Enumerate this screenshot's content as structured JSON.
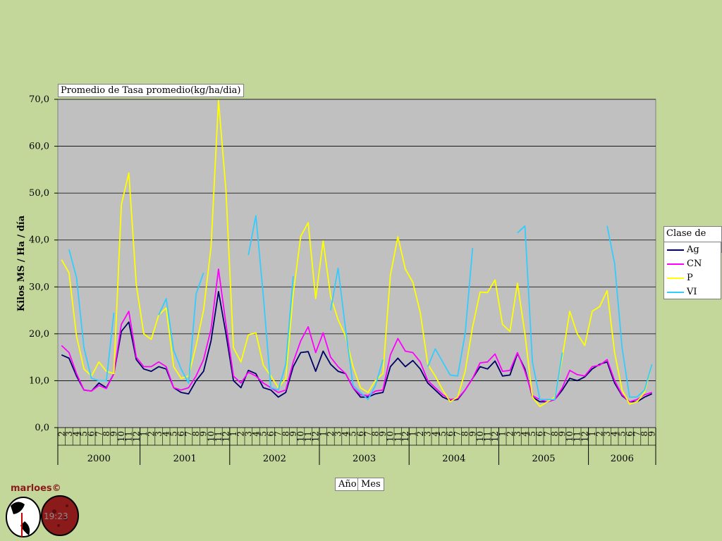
{
  "chart_data": {
    "type": "line",
    "title": "Promedio de Tasa promedio(kg/ha/dia)",
    "ylabel": "Kilos MS / Ha / día",
    "ylim": [
      0,
      70
    ],
    "yticks": [
      "0,0",
      "10,0",
      "20,0",
      "30,0",
      "40,0",
      "50,0",
      "60,0",
      "70,0"
    ],
    "grid": true,
    "legend_title": "Clase de uso",
    "legend_position": "right",
    "x_field_buttons": [
      "Año",
      "Mes"
    ],
    "years": [
      {
        "label": "2000",
        "months": [
          "2",
          "3",
          "4",
          "5",
          "6",
          "7",
          "8",
          "9",
          "10",
          "11",
          "12"
        ]
      },
      {
        "label": "2001",
        "months": [
          "1",
          "2",
          "3",
          "4",
          "5",
          "6",
          "7",
          "8",
          "9",
          "10",
          "11",
          "12"
        ]
      },
      {
        "label": "2002",
        "months": [
          "1",
          "2",
          "3",
          "4",
          "5",
          "6",
          "7",
          "8",
          "9",
          "10",
          "11",
          "12"
        ]
      },
      {
        "label": "2003",
        "months": [
          "1",
          "2",
          "3",
          "4",
          "5",
          "6",
          "7",
          "8",
          "9",
          "10",
          "11",
          "12"
        ]
      },
      {
        "label": "2004",
        "months": [
          "1",
          "2",
          "3",
          "4",
          "5",
          "6",
          "7",
          "8",
          "9",
          "10",
          "11",
          "12"
        ]
      },
      {
        "label": "2005",
        "months": [
          "1",
          "2",
          "3",
          "4",
          "5",
          "6",
          "7",
          "8",
          "9",
          "10",
          "11",
          "12"
        ]
      },
      {
        "label": "2006",
        "months": [
          "1",
          "2",
          "3",
          "4",
          "5",
          "6",
          "7",
          "8",
          "9"
        ]
      }
    ],
    "series": [
      {
        "name": "Ag",
        "color": "#000066",
        "values": [
          15.5,
          14.8,
          11,
          8,
          7.8,
          9.5,
          8.5,
          11.5,
          20.5,
          22.5,
          14.5,
          12.5,
          12,
          13,
          12.5,
          8.5,
          7.5,
          7.2,
          10,
          12,
          18.5,
          29,
          20,
          10,
          8.5,
          12.2,
          11.5,
          8.5,
          8,
          6.5,
          7.5,
          13,
          16,
          16.2,
          12,
          16.3,
          13.5,
          12,
          11.5,
          8.5,
          6.5,
          6.5,
          7.2,
          7.5,
          13,
          14.8,
          13,
          14.3,
          12.5,
          9.5,
          8,
          6.5,
          5.8,
          6,
          8,
          10.5,
          13,
          12.5,
          14.2,
          11,
          11.2,
          15.8,
          12.5,
          6.5,
          5.5,
          5.5,
          6,
          8,
          10.5,
          10,
          10.8,
          12.5,
          13.5,
          14,
          9.5,
          6.8,
          5.5,
          5.5,
          6.5,
          7.2
        ]
      },
      {
        "name": "CN",
        "color": "#ff00ff",
        "values": [
          17.5,
          16,
          11.5,
          8,
          7.8,
          9,
          8.3,
          11.5,
          22,
          24.8,
          15,
          13,
          13,
          14,
          13,
          8.5,
          8,
          8.5,
          11,
          14.5,
          21,
          33.8,
          22,
          11,
          9.5,
          11.8,
          11,
          9.5,
          8.5,
          7.5,
          8,
          14,
          18.5,
          21.5,
          16,
          20.2,
          15,
          13,
          11.5,
          8.5,
          7,
          6.8,
          7.8,
          8,
          15.5,
          19,
          16.3,
          16,
          14,
          10,
          8.5,
          7,
          6,
          6.2,
          8,
          10.5,
          13.8,
          14,
          15.7,
          12,
          12.2,
          16,
          12,
          6.8,
          6,
          5.5,
          6,
          8.5,
          12.2,
          11.3,
          11,
          13,
          13.3,
          14.5,
          10,
          7,
          5.5,
          6,
          7,
          7.5
        ]
      },
      {
        "name": "P",
        "color": "#ffff00",
        "values": [
          35.8,
          33,
          19.5,
          12.5,
          11,
          14,
          12,
          11.5,
          47.5,
          54.3,
          30.5,
          20,
          18.8,
          24,
          25.5,
          13,
          10.5,
          11,
          17.5,
          25,
          38.5,
          69.8,
          50.5,
          17,
          14,
          19.8,
          20.2,
          13.3,
          11,
          8.5,
          10.5,
          28.5,
          40.8,
          43.7,
          27.5,
          39.8,
          28,
          23,
          19.5,
          13,
          8.5,
          7.5,
          10,
          11.5,
          32.5,
          40.7,
          33.8,
          31,
          24.5,
          13.5,
          11,
          8,
          5.5,
          6.5,
          12,
          21.5,
          28.9,
          28.8,
          31.5,
          22,
          20.5,
          30.8,
          20,
          6.5,
          4.5,
          5.5,
          6.5,
          15,
          24.8,
          20,
          17.5,
          24.8,
          25.8,
          29.2,
          16,
          8,
          5,
          5.5,
          7.5,
          13.5
        ]
      },
      {
        "name": "VI",
        "color": "#33ccff",
        "values": [
          null,
          38,
          32,
          17,
          10.5,
          10,
          10,
          24.5,
          null,
          null,
          null,
          null,
          null,
          24,
          27.5,
          16.5,
          12.5,
          9.5,
          28.5,
          33,
          null,
          null,
          null,
          null,
          null,
          36.8,
          45.2,
          28,
          8.5,
          8,
          13.5,
          32.3,
          null,
          null,
          null,
          null,
          25,
          34,
          21,
          9,
          7.5,
          6,
          9,
          14.5,
          null,
          null,
          null,
          null,
          null,
          13,
          16.8,
          14,
          11.2,
          11,
          20,
          38.3,
          null,
          null,
          null,
          null,
          null,
          41.5,
          43,
          14,
          6,
          6,
          6,
          16,
          null,
          null,
          null,
          null,
          null,
          43,
          35,
          17,
          6.5,
          6.5,
          8,
          13.5
        ]
      }
    ]
  }
}
